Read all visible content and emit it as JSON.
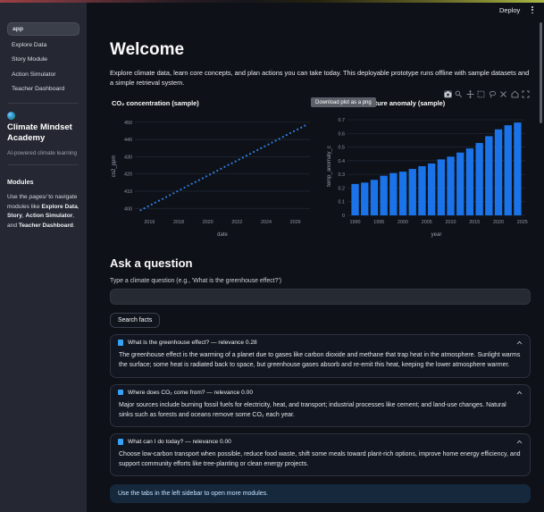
{
  "header": {
    "deploy_label": "Deploy",
    "menu_icon": "kebab-menu-icon"
  },
  "sidebar": {
    "nav": [
      {
        "label": "app",
        "active": true
      },
      {
        "label": "Explore Data",
        "active": false
      },
      {
        "label": "Story Module",
        "active": false
      },
      {
        "label": "Action Simulator",
        "active": false
      },
      {
        "label": "Teacher Dashboard",
        "active": false
      }
    ],
    "brand": {
      "icon": "globe-icon",
      "title": "Climate Mindset Academy",
      "caption": "AI-powered climate learning"
    },
    "modules_heading": "Modules",
    "modules_text_segments": [
      {
        "text": "Use the "
      },
      {
        "text": "pages/",
        "italic": true
      },
      {
        "text": " to navigate modules like "
      },
      {
        "text": "Explore Data",
        "bold": true
      },
      {
        "text": ", "
      },
      {
        "text": "Story",
        "bold": true
      },
      {
        "text": ", "
      },
      {
        "text": "Action Simulator",
        "bold": true
      },
      {
        "text": ", and "
      },
      {
        "text": "Teacher Dashboard",
        "bold": true
      },
      {
        "text": "."
      }
    ]
  },
  "main": {
    "title": "Welcome",
    "intro": "Explore climate data, learn core concepts, and plan actions you can take today. This deployable prototype runs offline with sample datasets and a simple retrieval system.",
    "tooltip": "Download plot as a png",
    "modebar_icons": [
      "camera",
      "magnifier",
      "pan",
      "box-select",
      "lasso",
      "autoscale",
      "home",
      "fullscreen"
    ]
  },
  "chart_data": [
    {
      "type": "scatter",
      "title": "CO₂ concentration (sample)",
      "xlabel": "date",
      "ylabel": "co2_ppm",
      "xlim": [
        2015.0,
        2027.0
      ],
      "ylim": [
        396,
        453
      ],
      "xticks": [
        2016,
        2018,
        2020,
        2022,
        2024,
        2026
      ],
      "yticks": [
        400,
        410,
        420,
        430,
        440,
        450
      ],
      "marker_color": "#2e7de0",
      "x": [
        2015.4,
        2015.65,
        2015.9,
        2016.15,
        2016.4,
        2016.65,
        2016.9,
        2017.15,
        2017.4,
        2017.65,
        2017.9,
        2018.15,
        2018.4,
        2018.65,
        2018.9,
        2019.15,
        2019.4,
        2019.65,
        2019.9,
        2020.15,
        2020.4,
        2020.65,
        2020.9,
        2021.15,
        2021.4,
        2021.65,
        2021.9,
        2022.15,
        2022.4,
        2022.65,
        2022.9,
        2023.15,
        2023.4,
        2023.65,
        2023.9,
        2024.15,
        2024.4,
        2024.65,
        2024.9,
        2025.15,
        2025.4,
        2025.65,
        2025.9,
        2026.15,
        2026.4,
        2026.65
      ],
      "y": [
        399.0,
        400.1,
        401.2,
        402.3,
        403.4,
        404.5,
        405.5,
        406.6,
        407.7,
        408.8,
        409.9,
        411.0,
        412.1,
        413.2,
        414.3,
        415.3,
        416.4,
        417.5,
        418.6,
        419.7,
        420.8,
        421.9,
        423.0,
        424.1,
        425.2,
        426.2,
        427.3,
        428.4,
        429.5,
        430.6,
        431.7,
        432.8,
        433.9,
        435.0,
        436.0,
        437.1,
        438.2,
        439.3,
        440.4,
        441.5,
        442.6,
        443.7,
        444.8,
        445.8,
        446.9,
        448.0
      ]
    },
    {
      "type": "bar",
      "title": "Global temperature anomaly (sample)",
      "xlabel": "year",
      "ylabel": "temp_anomaly_c",
      "xlim": [
        1988.4,
        2025.6
      ],
      "ylim": [
        0,
        0.72
      ],
      "xticks": [
        1990,
        1995,
        2000,
        2005,
        2010,
        2015,
        2020,
        2025
      ],
      "yticks": [
        0,
        0.1,
        0.2,
        0.3,
        0.4,
        0.5,
        0.6,
        0.7
      ],
      "bar_color": "#1a73e8",
      "categories": [
        1990,
        1992,
        1994,
        1996,
        1998,
        2000,
        2002,
        2004,
        2006,
        2008,
        2010,
        2012,
        2014,
        2016,
        2018,
        2020,
        2022,
        2024
      ],
      "values": [
        0.23,
        0.24,
        0.26,
        0.29,
        0.31,
        0.32,
        0.34,
        0.36,
        0.38,
        0.41,
        0.43,
        0.46,
        0.49,
        0.53,
        0.58,
        0.63,
        0.66,
        0.68
      ]
    }
  ],
  "ask": {
    "heading": "Ask a question",
    "input_label": "Type a climate question (e.g., 'What is the greenhouse effect?')",
    "input_value": "",
    "button_label": "Search facts"
  },
  "facts": [
    {
      "icon": "blue-book-icon",
      "title": "What is the greenhouse effect? — relevance 0.28",
      "body": "The greenhouse effect is the warming of a planet due to gases like carbon dioxide and methane that trap heat in the atmosphere. Sunlight warms the surface; some heat is radiated back to space, but greenhouse gases absorb and re-emit this heat, keeping the lower atmosphere warmer."
    },
    {
      "icon": "blue-book-icon",
      "title": "Where does CO₂ come from? — relevance 0.00",
      "body": "Major sources include burning fossil fuels for electricity, heat, and transport; industrial processes like cement; and land-use changes. Natural sinks such as forests and oceans remove some CO₂ each year."
    },
    {
      "icon": "blue-book-icon",
      "title": "What can I do today? — relevance 0.00",
      "body": "Choose low-carbon transport when possible, reduce food waste, shift some meals toward plant-rich options, improve home energy efficiency, and support community efforts like tree-planting or clean energy projects."
    }
  ],
  "info_banner": "Use the tabs in the left sidebar to open more modules."
}
